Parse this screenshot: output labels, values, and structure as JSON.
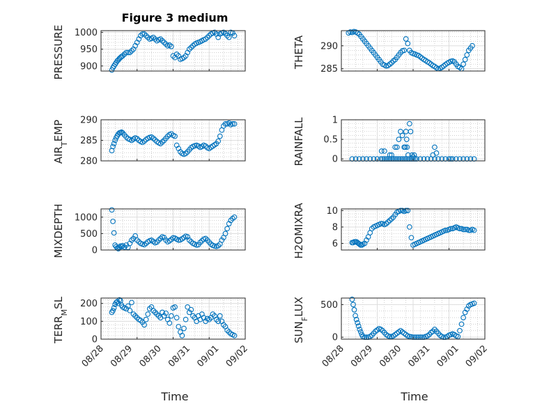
{
  "figure_title": "Figure 3 medium",
  "x_axis_label": "Time",
  "x_tick_labels": [
    "08/28",
    "08/29",
    "08/30",
    "08/31",
    "09/01",
    "09/02"
  ],
  "colors": {
    "marker": "#0072bd",
    "axes": "#262626",
    "grid": "#b0b0b0"
  },
  "chart_data": [
    {
      "type": "scatter",
      "ylabel": "PRESSURE",
      "ylim": [
        885,
        1005
      ],
      "yticks": [
        900,
        950,
        1000
      ],
      "xlim": [
        0,
        4
      ],
      "grid": true,
      "x": [
        0.3,
        0.33,
        0.36,
        0.39,
        0.42,
        0.45,
        0.48,
        0.51,
        0.54,
        0.57,
        0.6,
        0.65,
        0.7,
        0.75,
        0.8,
        0.85,
        0.9,
        0.95,
        1.0,
        1.05,
        1.1,
        1.15,
        1.2,
        1.25,
        1.3,
        1.35,
        1.4,
        1.45,
        1.5,
        1.55,
        1.6,
        1.65,
        1.7,
        1.75,
        1.8,
        1.85,
        1.9,
        1.95,
        2.0,
        2.05,
        2.1,
        2.15,
        2.2,
        2.25,
        2.3,
        2.35,
        2.4,
        2.45,
        2.5,
        2.55,
        2.6,
        2.65,
        2.7,
        2.75,
        2.8,
        2.85,
        2.9,
        2.95,
        3.0,
        3.05,
        3.1,
        3.15,
        3.2,
        3.25,
        3.3,
        3.35,
        3.4,
        3.45,
        3.5,
        3.55,
        3.6,
        3.65,
        3.7
      ],
      "y": [
        888,
        895,
        900,
        905,
        910,
        915,
        918,
        922,
        925,
        928,
        930,
        935,
        940,
        940,
        940,
        945,
        950,
        960,
        970,
        980,
        990,
        995,
        995,
        990,
        985,
        980,
        982,
        985,
        980,
        975,
        978,
        980,
        975,
        970,
        965,
        960,
        962,
        958,
        930,
        925,
        935,
        930,
        920,
        922,
        925,
        930,
        940,
        950,
        955,
        960,
        965,
        968,
        970,
        972,
        975,
        978,
        980,
        985,
        990,
        995,
        998,
        1000,
        995,
        985,
        995,
        998,
        1000,
        996,
        990,
        985,
        1000,
        998,
        990
      ]
    },
    {
      "type": "scatter",
      "ylabel": "THETA",
      "ylim": [
        284.5,
        293.3
      ],
      "yticks": [
        285,
        290
      ],
      "xlim": [
        0,
        4
      ],
      "grid": true,
      "x": [
        0.2,
        0.25,
        0.3,
        0.35,
        0.4,
        0.45,
        0.5,
        0.55,
        0.6,
        0.65,
        0.7,
        0.75,
        0.8,
        0.85,
        0.9,
        0.95,
        1.0,
        1.05,
        1.1,
        1.15,
        1.2,
        1.25,
        1.3,
        1.35,
        1.4,
        1.45,
        1.5,
        1.55,
        1.6,
        1.65,
        1.7,
        1.75,
        1.8,
        1.85,
        1.9,
        1.95,
        2.0,
        2.05,
        2.1,
        2.15,
        2.2,
        2.25,
        2.3,
        2.35,
        2.4,
        2.45,
        2.5,
        2.55,
        2.6,
        2.65,
        2.7,
        2.75,
        2.8,
        2.85,
        2.9,
        2.95,
        3.0,
        3.05,
        3.1,
        3.15,
        3.2,
        3.25,
        3.3,
        3.35,
        3.4,
        3.45,
        3.5,
        3.55,
        3.6,
        3.65
      ],
      "y": [
        292.8,
        293.0,
        292.9,
        293.1,
        293.0,
        292.8,
        292.5,
        292.0,
        291.5,
        291.0,
        290.5,
        290.0,
        289.5,
        289.0,
        288.5,
        288.0,
        287.5,
        287.0,
        286.5,
        286.0,
        285.8,
        285.6,
        285.7,
        286.0,
        286.3,
        286.7,
        287.0,
        287.5,
        288.0,
        288.5,
        288.9,
        289.0,
        291.5,
        290.5,
        289.0,
        288.5,
        288.3,
        288.2,
        288.0,
        287.9,
        287.6,
        287.3,
        287.0,
        286.8,
        286.5,
        286.3,
        286.0,
        285.7,
        285.5,
        285.2,
        285.0,
        285.1,
        285.3,
        285.6,
        285.9,
        286.2,
        286.4,
        286.6,
        286.7,
        286.5,
        286.0,
        285.5,
        285.3,
        285.0,
        286.0,
        287.0,
        288.0,
        289.0,
        289.5,
        290.0
      ]
    },
    {
      "type": "scatter",
      "ylabel": "AIR_TEMP",
      "ylim": [
        280,
        290
      ],
      "yticks": [
        280,
        285,
        290
      ],
      "xlim": [
        0,
        4
      ],
      "grid": true,
      "x": [
        0.3,
        0.33,
        0.36,
        0.39,
        0.42,
        0.45,
        0.48,
        0.51,
        0.54,
        0.57,
        0.6,
        0.65,
        0.7,
        0.75,
        0.8,
        0.85,
        0.9,
        0.95,
        1.0,
        1.05,
        1.1,
        1.15,
        1.2,
        1.25,
        1.3,
        1.35,
        1.4,
        1.45,
        1.5,
        1.55,
        1.6,
        1.65,
        1.7,
        1.75,
        1.8,
        1.85,
        1.9,
        1.95,
        2.0,
        2.05,
        2.1,
        2.15,
        2.2,
        2.25,
        2.3,
        2.35,
        2.4,
        2.45,
        2.5,
        2.55,
        2.6,
        2.65,
        2.7,
        2.75,
        2.8,
        2.85,
        2.9,
        2.95,
        3.0,
        3.05,
        3.1,
        3.15,
        3.2,
        3.25,
        3.3,
        3.35,
        3.4,
        3.45,
        3.5,
        3.55,
        3.6,
        3.65,
        3.7
      ],
      "y": [
        282.5,
        283.5,
        284.2,
        285.0,
        285.6,
        286.1,
        286.5,
        286.8,
        286.9,
        287.0,
        286.8,
        286.3,
        285.8,
        285.4,
        285.2,
        285.0,
        285.3,
        285.6,
        285.4,
        285.0,
        284.7,
        284.5,
        284.8,
        285.2,
        285.5,
        285.7,
        285.8,
        285.5,
        285.1,
        284.7,
        284.4,
        284.2,
        284.6,
        285.0,
        285.5,
        286.0,
        286.4,
        286.6,
        286.2,
        286.0,
        283.8,
        283.0,
        282.2,
        281.8,
        281.6,
        281.8,
        282.2,
        282.7,
        283.2,
        283.5,
        283.7,
        283.8,
        283.6,
        283.3,
        283.5,
        283.8,
        283.6,
        283.2,
        283.0,
        283.3,
        283.6,
        283.9,
        284.2,
        284.8,
        286.0,
        287.5,
        288.5,
        289.0,
        289.0,
        289.2,
        288.8,
        289.0,
        289.0
      ]
    },
    {
      "type": "scatter",
      "ylabel": "RAINFALL",
      "ylim": [
        -0.05,
        1.0
      ],
      "yticks": [
        0,
        0.5,
        1
      ],
      "ytick_labels": [
        "0",
        "0.5",
        "1"
      ],
      "xlim": [
        0,
        4
      ],
      "grid": true,
      "x": [
        0.3,
        0.4,
        0.5,
        0.6,
        0.7,
        0.8,
        0.9,
        1.0,
        1.1,
        1.15,
        1.2,
        1.25,
        1.3,
        1.35,
        1.4,
        1.45,
        1.5,
        1.55,
        1.6,
        1.65,
        1.7,
        1.75,
        1.8,
        1.85,
        1.9,
        1.95,
        2.0,
        2.05,
        2.1,
        2.2,
        2.3,
        2.4,
        2.5,
        2.6,
        2.7,
        2.8,
        2.9,
        3.0,
        3.05,
        3.1,
        3.2,
        3.3,
        3.4,
        3.5,
        3.6,
        3.7,
        1.12,
        1.2,
        1.35,
        1.4,
        1.5,
        1.55,
        1.6,
        1.65,
        1.7,
        1.75,
        1.8,
        1.83,
        1.86,
        1.9,
        1.93,
        1.97,
        2.0,
        2.03,
        1.82,
        1.78,
        2.6,
        2.65,
        2.55
      ],
      "y": [
        0,
        0,
        0,
        0,
        0,
        0,
        0,
        0,
        0,
        0,
        0,
        0,
        0,
        0,
        0,
        0,
        0,
        0,
        0,
        0,
        0,
        0,
        0,
        0,
        0,
        0,
        0,
        0,
        0,
        0,
        0,
        0,
        0,
        0,
        0,
        0,
        0,
        0,
        0,
        0,
        0,
        0,
        0,
        0,
        0,
        0,
        0.2,
        0.2,
        0.1,
        0.1,
        0.3,
        0.3,
        0.5,
        0.7,
        0.6,
        0.3,
        0.7,
        0.3,
        0.1,
        0.9,
        0.7,
        0.1,
        0.05,
        0.1,
        0.5,
        0.3,
        0.3,
        0.15,
        0.1
      ]
    },
    {
      "type": "scatter",
      "ylabel": "MIXDEPTH",
      "ylim": [
        0,
        1250
      ],
      "yticks": [
        0,
        500,
        1000
      ],
      "xlim": [
        0,
        4
      ],
      "grid": true,
      "x": [
        0.3,
        0.33,
        0.36,
        0.39,
        0.42,
        0.45,
        0.48,
        0.51,
        0.54,
        0.57,
        0.6,
        0.65,
        0.7,
        0.75,
        0.8,
        0.85,
        0.9,
        0.95,
        1.0,
        1.05,
        1.1,
        1.15,
        1.2,
        1.25,
        1.3,
        1.35,
        1.4,
        1.45,
        1.5,
        1.55,
        1.6,
        1.65,
        1.7,
        1.75,
        1.8,
        1.85,
        1.9,
        1.95,
        2.0,
        2.05,
        2.1,
        2.15,
        2.2,
        2.25,
        2.3,
        2.35,
        2.4,
        2.45,
        2.5,
        2.55,
        2.6,
        2.65,
        2.7,
        2.75,
        2.8,
        2.85,
        2.9,
        2.95,
        3.0,
        3.05,
        3.1,
        3.15,
        3.2,
        3.25,
        3.3,
        3.35,
        3.4,
        3.45,
        3.5,
        3.55,
        3.6,
        3.65,
        3.7
      ],
      "y": [
        1220,
        870,
        520,
        150,
        100,
        60,
        40,
        80,
        120,
        100,
        130,
        90,
        150,
        80,
        200,
        300,
        350,
        430,
        300,
        250,
        200,
        180,
        160,
        200,
        250,
        280,
        300,
        260,
        220,
        240,
        300,
        350,
        400,
        380,
        300,
        250,
        280,
        320,
        370,
        360,
        330,
        300,
        310,
        340,
        380,
        420,
        400,
        300,
        250,
        200,
        180,
        150,
        160,
        230,
        280,
        330,
        350,
        300,
        240,
        180,
        140,
        120,
        110,
        130,
        180,
        300,
        380,
        500,
        650,
        800,
        900,
        960,
        1000
      ]
    },
    {
      "type": "scatter",
      "ylabel": "H2OMIXRA",
      "ylim": [
        5.2,
        10.2
      ],
      "yticks": [
        6,
        8,
        10
      ],
      "xlim": [
        0,
        4
      ],
      "grid": true,
      "x": [
        0.3,
        0.33,
        0.36,
        0.39,
        0.42,
        0.45,
        0.48,
        0.51,
        0.54,
        0.57,
        0.6,
        0.65,
        0.7,
        0.75,
        0.8,
        0.85,
        0.9,
        0.95,
        1.0,
        1.05,
        1.1,
        1.15,
        1.2,
        1.25,
        1.3,
        1.35,
        1.4,
        1.45,
        1.5,
        1.55,
        1.6,
        1.65,
        1.7,
        1.75,
        1.8,
        1.85,
        1.9,
        1.95,
        2.0,
        2.05,
        2.1,
        2.15,
        2.2,
        2.25,
        2.3,
        2.35,
        2.4,
        2.45,
        2.5,
        2.55,
        2.6,
        2.65,
        2.7,
        2.75,
        2.8,
        2.85,
        2.9,
        2.95,
        3.0,
        3.05,
        3.1,
        3.15,
        3.2,
        3.25,
        3.3,
        3.35,
        3.4,
        3.45,
        3.5,
        3.55,
        3.6,
        3.65,
        3.7
      ],
      "y": [
        6.1,
        6.1,
        6.2,
        6.2,
        6.2,
        6.1,
        6.0,
        5.9,
        5.8,
        5.8,
        5.9,
        6.0,
        6.4,
        6.8,
        7.3,
        7.8,
        8.0,
        8.1,
        8.2,
        8.3,
        8.4,
        8.4,
        8.3,
        8.4,
        8.6,
        8.8,
        9.0,
        9.2,
        9.5,
        9.8,
        9.9,
        10.0,
        10.0,
        9.9,
        10.0,
        10.0,
        8.0,
        6.7,
        5.8,
        5.9,
        6.0,
        6.1,
        6.2,
        6.3,
        6.4,
        6.5,
        6.6,
        6.7,
        6.8,
        6.9,
        7.0,
        7.1,
        7.2,
        7.3,
        7.4,
        7.5,
        7.6,
        7.6,
        7.7,
        7.8,
        7.8,
        7.9,
        8.0,
        7.9,
        7.8,
        7.8,
        7.7,
        7.7,
        7.7,
        7.6,
        7.6,
        7.7,
        7.6
      ]
    },
    {
      "type": "scatter",
      "ylabel": "TERR_MSL",
      "ylim": [
        0,
        230
      ],
      "yticks": [
        0,
        100,
        200
      ],
      "xlim": [
        0,
        4
      ],
      "grid": true,
      "x": [
        0.3,
        0.33,
        0.36,
        0.39,
        0.42,
        0.45,
        0.48,
        0.51,
        0.54,
        0.57,
        0.6,
        0.65,
        0.7,
        0.75,
        0.8,
        0.85,
        0.9,
        0.95,
        1.0,
        1.05,
        1.1,
        1.15,
        1.2,
        1.25,
        1.3,
        1.35,
        1.4,
        1.45,
        1.5,
        1.55,
        1.6,
        1.65,
        1.7,
        1.75,
        1.8,
        1.85,
        1.9,
        1.95,
        2.0,
        2.05,
        2.1,
        2.15,
        2.2,
        2.25,
        2.3,
        2.35,
        2.4,
        2.45,
        2.5,
        2.55,
        2.6,
        2.65,
        2.7,
        2.75,
        2.8,
        2.85,
        2.9,
        2.95,
        3.0,
        3.05,
        3.1,
        3.15,
        3.2,
        3.25,
        3.3,
        3.35,
        3.4,
        3.45,
        3.5,
        3.55,
        3.6,
        3.65,
        3.7
      ],
      "y": [
        150,
        160,
        175,
        195,
        205,
        210,
        200,
        220,
        215,
        190,
        180,
        175,
        170,
        185,
        160,
        205,
        140,
        130,
        120,
        110,
        105,
        95,
        80,
        110,
        140,
        170,
        180,
        160,
        150,
        140,
        130,
        120,
        150,
        130,
        145,
        110,
        90,
        130,
        175,
        180,
        120,
        70,
        40,
        20,
        60,
        110,
        180,
        150,
        165,
        130,
        120,
        100,
        130,
        110,
        140,
        120,
        100,
        115,
        110,
        120,
        140,
        130,
        110,
        100,
        130,
        100,
        80,
        70,
        50,
        40,
        30,
        25,
        20
      ]
    },
    {
      "type": "scatter",
      "ylabel": "SUN_FLUX",
      "ylim": [
        -30,
        600
      ],
      "yticks": [
        0,
        500
      ],
      "xlim": [
        0,
        4
      ],
      "grid": true,
      "x": [
        0.3,
        0.33,
        0.36,
        0.39,
        0.42,
        0.45,
        0.48,
        0.51,
        0.54,
        0.57,
        0.6,
        0.65,
        0.7,
        0.75,
        0.8,
        0.85,
        0.9,
        0.95,
        1.0,
        1.05,
        1.1,
        1.15,
        1.2,
        1.25,
        1.3,
        1.35,
        1.4,
        1.45,
        1.5,
        1.55,
        1.6,
        1.65,
        1.7,
        1.75,
        1.8,
        1.85,
        1.9,
        1.95,
        2.0,
        2.05,
        2.1,
        2.15,
        2.2,
        2.25,
        2.3,
        2.35,
        2.4,
        2.45,
        2.5,
        2.55,
        2.6,
        2.65,
        2.7,
        2.75,
        2.8,
        2.85,
        2.9,
        2.95,
        3.0,
        3.05,
        3.1,
        3.15,
        3.2,
        3.25,
        3.3,
        3.35,
        3.4,
        3.45,
        3.5,
        3.55,
        3.6,
        3.65,
        3.7
      ],
      "y": [
        580,
        500,
        420,
        330,
        270,
        220,
        170,
        120,
        80,
        40,
        10,
        0,
        0,
        0,
        10,
        30,
        60,
        90,
        110,
        130,
        120,
        100,
        70,
        40,
        20,
        10,
        10,
        20,
        40,
        60,
        80,
        100,
        80,
        60,
        40,
        20,
        10,
        5,
        0,
        0,
        0,
        0,
        0,
        0,
        0,
        10,
        20,
        40,
        70,
        90,
        120,
        90,
        60,
        30,
        10,
        0,
        0,
        10,
        30,
        40,
        50,
        40,
        20,
        10,
        100,
        200,
        300,
        380,
        430,
        480,
        500,
        510,
        520
      ]
    }
  ]
}
